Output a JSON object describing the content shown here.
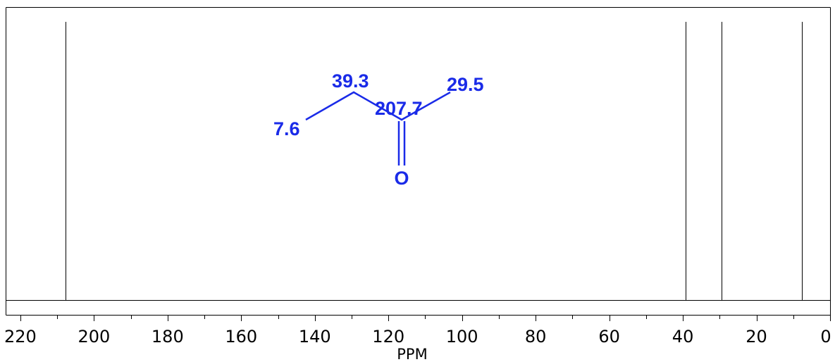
{
  "chart_data": {
    "type": "spectrum",
    "xlabel": "PPM",
    "xlim": [
      224,
      0
    ],
    "x_reversed": true,
    "tick_labels": [
      "220",
      "200",
      "180",
      "160",
      "140",
      "120",
      "100",
      "80",
      "60",
      "40",
      "20",
      "0"
    ],
    "tick_values": [
      220,
      200,
      180,
      160,
      140,
      120,
      100,
      80,
      60,
      40,
      20,
      0
    ],
    "peaks": [
      207.7,
      39.3,
      29.5,
      7.6
    ],
    "molecule": {
      "shift_labels": [
        "7.6",
        "39.3",
        "207.7",
        "29.5"
      ],
      "oxygen_label": "O",
      "color": "#1a2be8"
    }
  }
}
